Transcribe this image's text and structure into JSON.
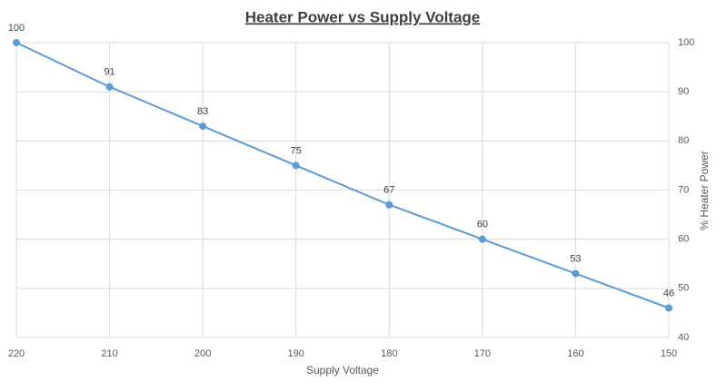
{
  "chart_data": {
    "type": "line",
    "title": "Heater Power vs Supply Voltage",
    "x_label": "Supply Voltage",
    "y_label": "% Heater Power",
    "x": [
      220,
      210,
      200,
      190,
      180,
      170,
      160,
      150
    ],
    "series": [
      {
        "name": "% Heater Power",
        "color": "#5b9bd5",
        "values": [
          100,
          91,
          83,
          75,
          67,
          60,
          53,
          46
        ]
      }
    ],
    "xlim": [
      220,
      150
    ],
    "xticks": [
      220,
      210,
      200,
      190,
      180,
      170,
      160,
      150
    ],
    "ylim": [
      40,
      100
    ],
    "yticks": [
      40,
      50,
      60,
      70,
      80,
      90,
      100
    ],
    "y_axis_side": "right",
    "grid": true
  }
}
